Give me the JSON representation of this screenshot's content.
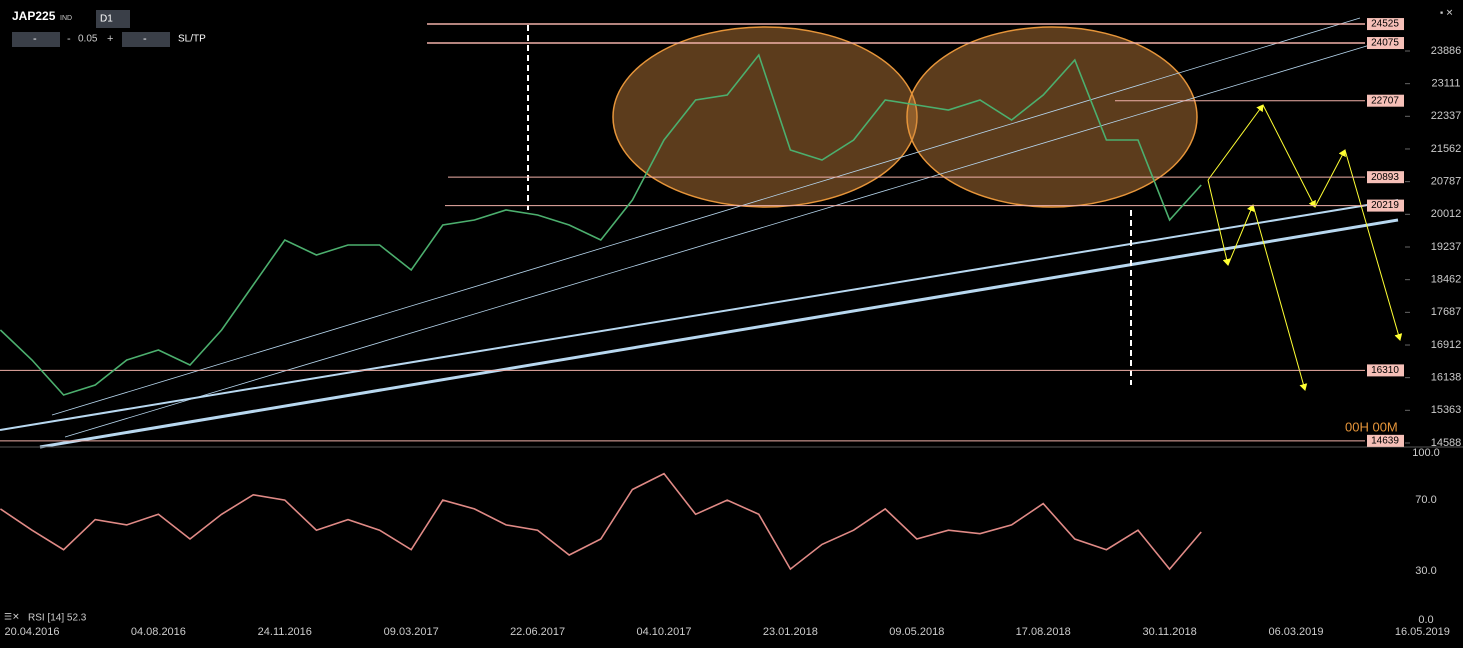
{
  "toolbar": {
    "symbol": "JAP225",
    "market": "IND",
    "timeframe": "D1",
    "minus": "-",
    "step": "0.05",
    "plus": "+",
    "sltp": "SL/TP"
  },
  "countdown": "00H 00M",
  "chart_data": [
    {
      "type": "line",
      "title": "JAP225",
      "color": "#4caf6e",
      "categories": [
        null,
        "20.04.2016",
        null,
        null,
        null,
        "04.08.2016",
        null,
        null,
        null,
        "24.11.2016",
        null,
        null,
        null,
        "09.03.2017",
        null,
        null,
        null,
        "22.06.2017",
        null,
        null,
        null,
        "04.10.2017",
        null,
        null,
        null,
        "23.01.2018",
        null,
        null,
        null,
        "09.05.2018",
        null,
        null,
        null,
        "17.08.2018",
        null,
        null,
        null,
        "30.11.2018",
        null,
        null,
        null,
        "06.03.2019",
        null,
        null,
        null,
        "16.05.2019"
      ],
      "values": [
        17268,
        16557,
        15727,
        15964,
        16557,
        16794,
        16438,
        17268,
        18336,
        19403,
        19047,
        19285,
        19285,
        18692,
        19759,
        19878,
        20115,
        19996,
        19759,
        19403,
        20352,
        21775,
        22724,
        22842,
        23791,
        21538,
        21301,
        21775,
        22724,
        22605,
        22487,
        22724,
        22250,
        22842,
        23673,
        21775,
        21775,
        19878,
        20708,
        null,
        null,
        null,
        null,
        null,
        null,
        null
      ],
      "ylim": [
        14493,
        24977
      ],
      "yticks": [
        14588,
        15363,
        16138,
        16912,
        17687,
        18462,
        19237,
        20012,
        20787,
        21562,
        22337,
        23111,
        23886
      ],
      "levels": [
        24525,
        24075,
        22707,
        20893,
        20219,
        16310,
        14639
      ]
    },
    {
      "type": "line",
      "title": "RSI [14] 52.3",
      "color": "#e08a86",
      "values": [
        65,
        53,
        42,
        59,
        56,
        62,
        48,
        62,
        73,
        70,
        53,
        59,
        53,
        42,
        70,
        65,
        56,
        53,
        39,
        48,
        76,
        85,
        62,
        70,
        62,
        31,
        45,
        53,
        65,
        48,
        53,
        51,
        56,
        68,
        48,
        42,
        53,
        31,
        52,
        null,
        null,
        null,
        null,
        null,
        null,
        null
      ],
      "ylim": [
        0,
        100
      ],
      "yticks": [
        {
          "value": 0,
          "label": "0.0"
        },
        {
          "value": 30,
          "label": "30.0"
        },
        {
          "value": 70,
          "label": "70.0"
        },
        {
          "value": 100,
          "label": "100.0"
        }
      ]
    }
  ]
}
